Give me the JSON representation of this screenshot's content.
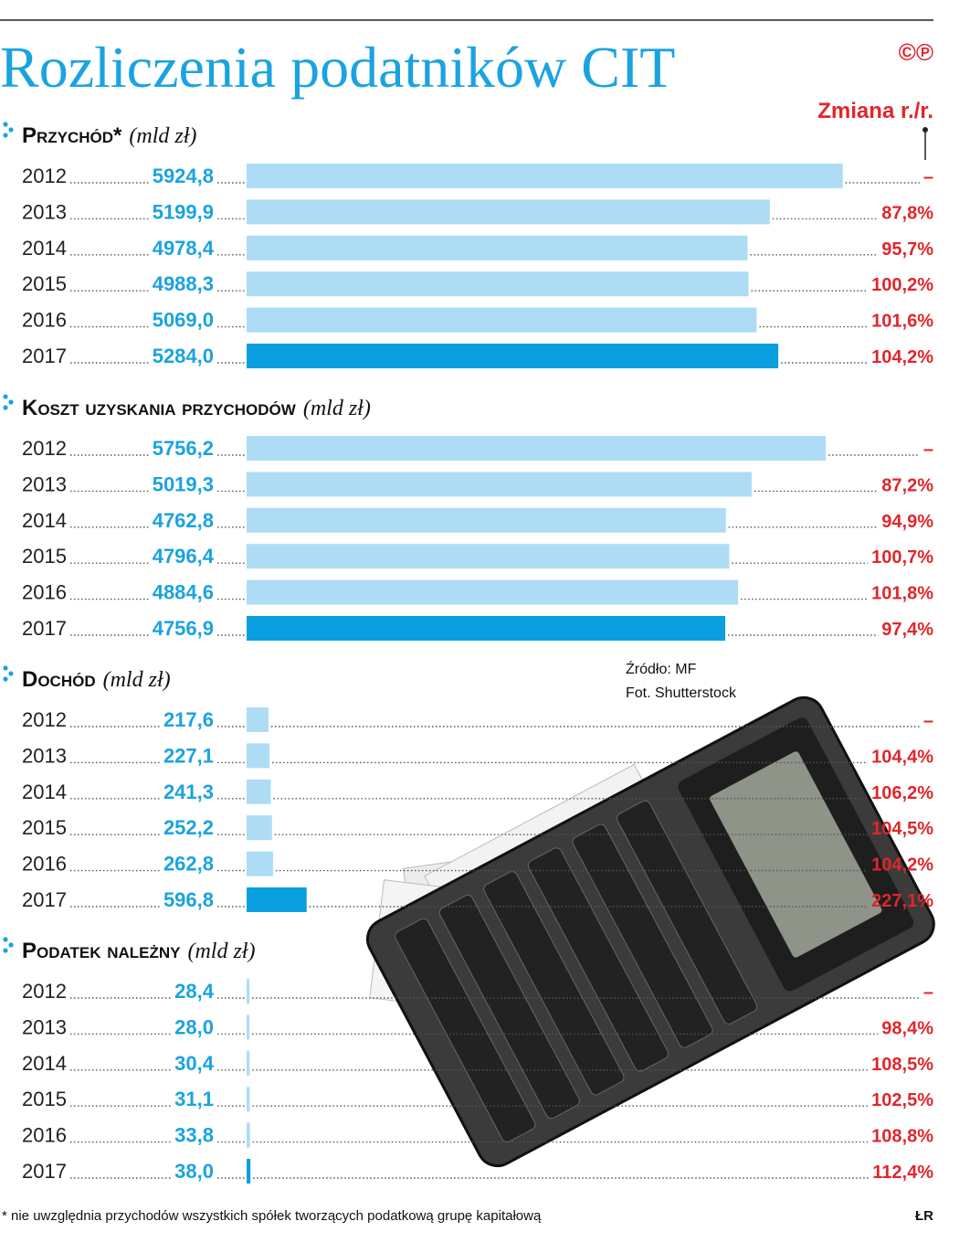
{
  "title": "Rozliczenia podatników CIT",
  "logo": "©℗",
  "change_header": "Zmiana r./r.",
  "source": "Źródło: MF",
  "photo": "Fot. Shutterstock",
  "footnote": "* nie uwzględnia przychodów wszystkich spółek tworzących podatkową grupę kapitałową",
  "credit": "ŁR",
  "chart_data": [
    {
      "type": "bar",
      "title": "Przychód*",
      "unit": "(mld zł)",
      "categories": [
        "2012",
        "2013",
        "2014",
        "2015",
        "2016",
        "2017"
      ],
      "values": [
        5924.8,
        5199.9,
        4978.4,
        4988.3,
        5069.0,
        5284.0
      ],
      "value_labels": [
        "5924,8",
        "5199,9",
        "4978,4",
        "4988,3",
        "5069,0",
        "5284,0"
      ],
      "colors": [
        "#aedcf5",
        "#aedcf5",
        "#aedcf5",
        "#aedcf5",
        "#aedcf5",
        "#0aa0e0"
      ],
      "change": [
        "–",
        "87,8%",
        "95,7%",
        "100,2%",
        "101,6%",
        "104,2%"
      ],
      "xlim": [
        0,
        6000
      ]
    },
    {
      "type": "bar",
      "title": "Koszt uzyskania przychodów",
      "unit": "(mld zł)",
      "categories": [
        "2012",
        "2013",
        "2014",
        "2015",
        "2016",
        "2017"
      ],
      "values": [
        5756.2,
        5019.3,
        4762.8,
        4796.4,
        4884.6,
        4756.9
      ],
      "value_labels": [
        "5756,2",
        "5019,3",
        "4762,8",
        "4796,4",
        "4884,6",
        "4756,9"
      ],
      "colors": [
        "#aedcf5",
        "#aedcf5",
        "#aedcf5",
        "#aedcf5",
        "#aedcf5",
        "#0aa0e0"
      ],
      "change": [
        "–",
        "87,2%",
        "94,9%",
        "100,7%",
        "101,8%",
        "97,4%"
      ],
      "xlim": [
        0,
        6000
      ]
    },
    {
      "type": "bar",
      "title": "Dochód",
      "unit": "(mld zł)",
      "categories": [
        "2012",
        "2013",
        "2014",
        "2015",
        "2016",
        "2017"
      ],
      "values": [
        217.6,
        227.1,
        241.3,
        252.2,
        262.8,
        596.8
      ],
      "value_labels": [
        "217,6",
        "227,1",
        "241,3",
        "252,2",
        "262,8",
        "596,8"
      ],
      "colors": [
        "#aedcf5",
        "#aedcf5",
        "#aedcf5",
        "#aedcf5",
        "#aedcf5",
        "#0aa0e0"
      ],
      "change": [
        "–",
        "104,4%",
        "106,2%",
        "104,5%",
        "104,2%",
        "227,1%"
      ],
      "xlim": [
        0,
        6000
      ]
    },
    {
      "type": "bar",
      "title": "Podatek należny",
      "unit": "(mld zł)",
      "categories": [
        "2012",
        "2013",
        "2014",
        "2015",
        "2016",
        "2017"
      ],
      "values": [
        28.4,
        28.0,
        30.4,
        31.1,
        33.8,
        38.0
      ],
      "value_labels": [
        "28,4",
        "28,0",
        "30,4",
        "31,1",
        "33,8",
        "38,0"
      ],
      "colors": [
        "#aedcf5",
        "#aedcf5",
        "#aedcf5",
        "#aedcf5",
        "#aedcf5",
        "#0aa0e0"
      ],
      "change": [
        "–",
        "98,4%",
        "108,5%",
        "102,5%",
        "108,8%",
        "112,4%"
      ],
      "xlim": [
        0,
        6000
      ]
    }
  ]
}
